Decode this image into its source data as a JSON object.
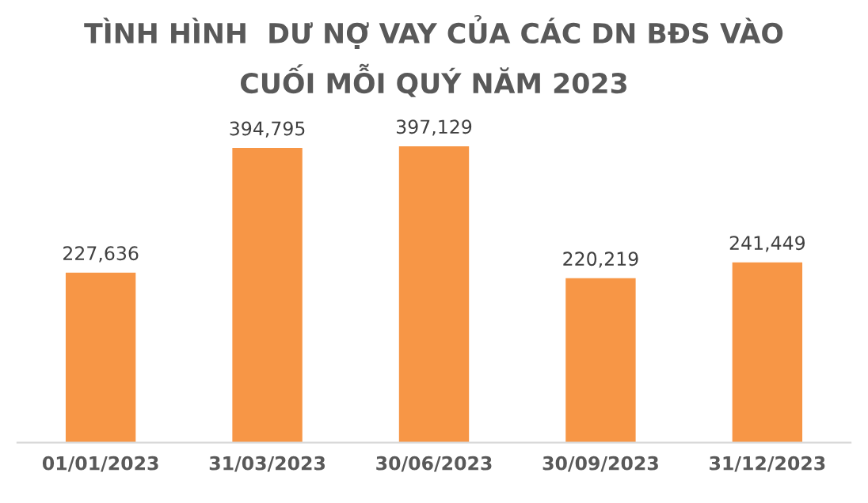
{
  "chart_data": {
    "type": "bar",
    "title": "TÌNH HÌNH  DƯ NỢ VAY CỦA CÁC DN BĐS VÀO\nCUỐI MỖI QUÝ NĂM 2023",
    "categories": [
      "01/01/2023",
      "31/03/2023",
      "30/06/2023",
      "30/09/2023",
      "31/12/2023"
    ],
    "values": [
      227636,
      394795,
      397129,
      220219,
      241449
    ],
    "value_labels": [
      "227,636",
      "394,795",
      "397,129",
      "220,219",
      "241,449"
    ],
    "color": "#f79646"
  }
}
